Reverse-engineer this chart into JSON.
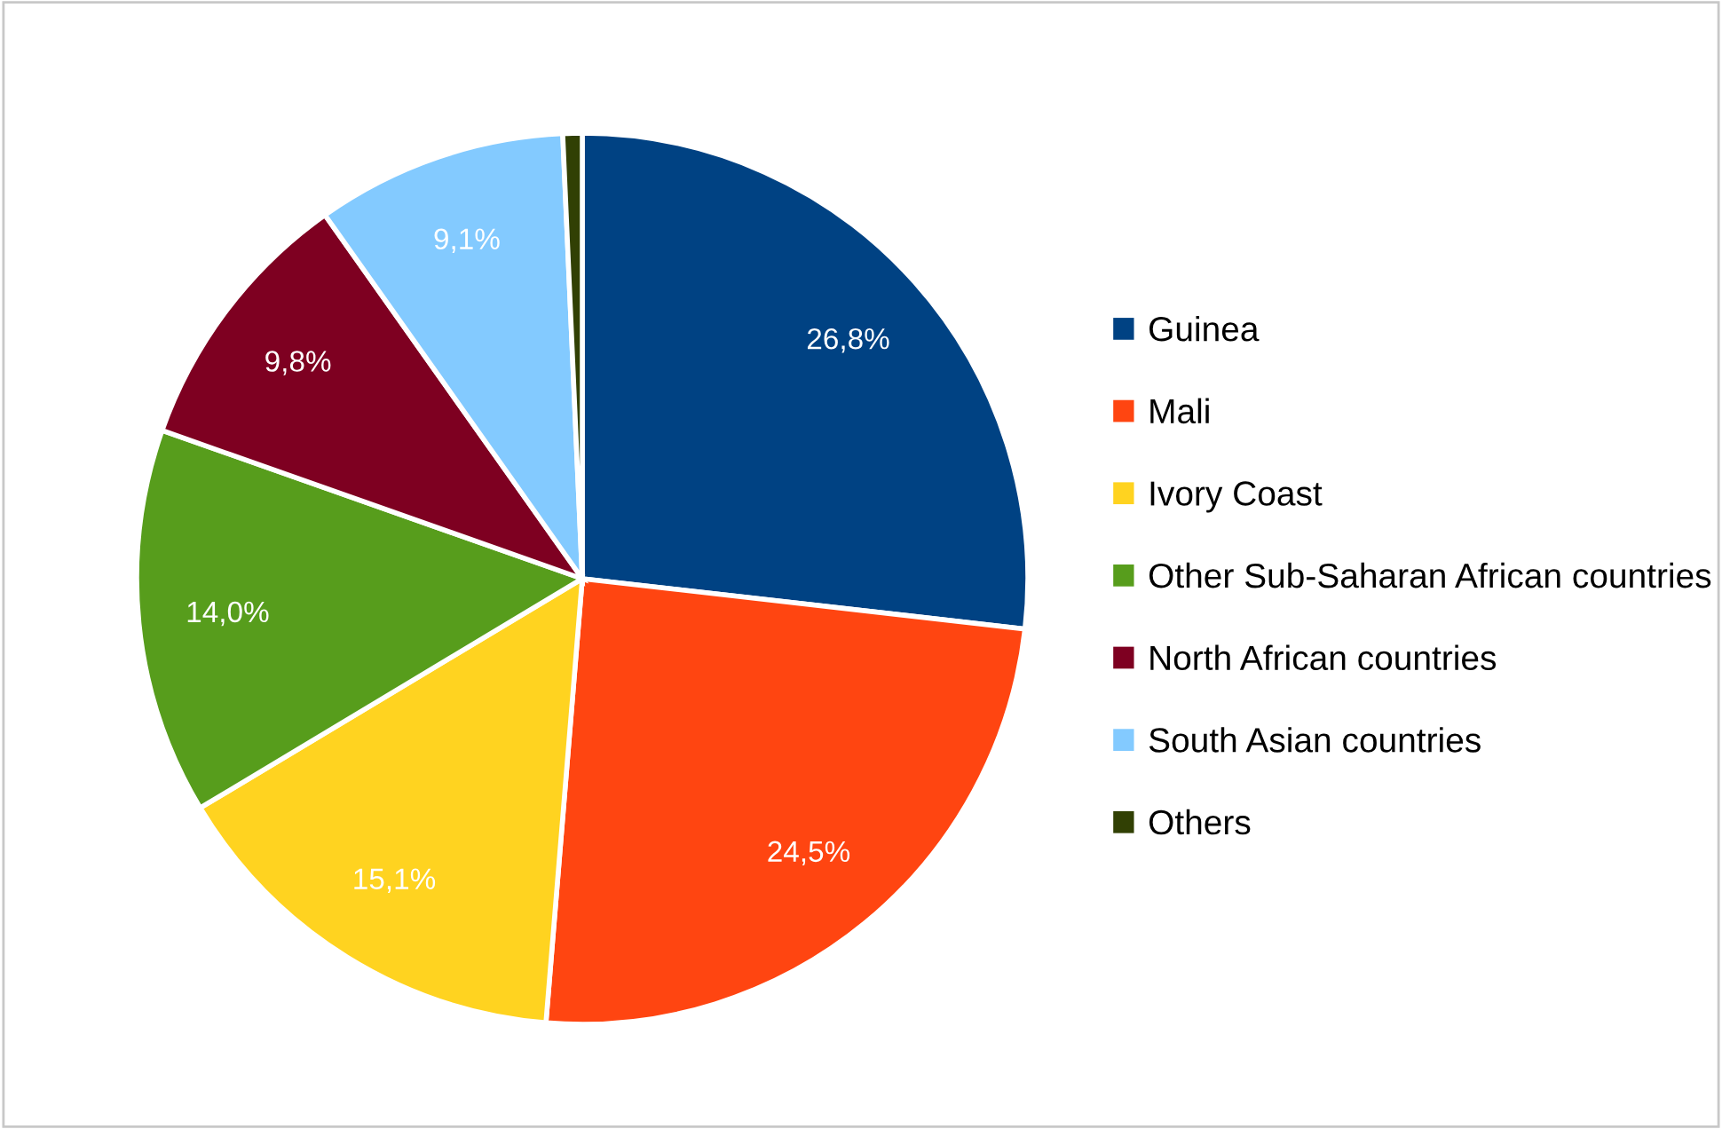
{
  "chart_data": {
    "type": "pie",
    "categories": [
      "Guinea",
      "Mali",
      "Ivory Coast",
      "Other Sub-Saharan African countries",
      "North African countries",
      "South Asian countries",
      "Others"
    ],
    "values": [
      26.8,
      24.5,
      15.1,
      14.0,
      9.8,
      9.1,
      0.7
    ],
    "colors": [
      "#004283",
      "#ff4511",
      "#ffd320",
      "#579d1c",
      "#7e0021",
      "#83caff",
      "#314004"
    ],
    "value_labels": [
      "26,8%",
      "24,5%",
      "15,1%",
      "14,0%",
      "9,8%",
      "9,1%",
      null
    ],
    "legend": "right"
  }
}
